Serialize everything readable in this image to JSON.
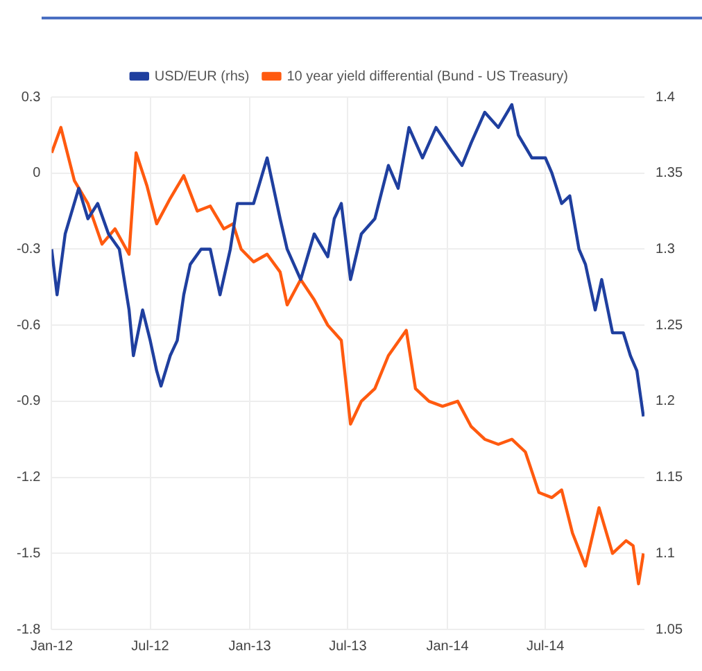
{
  "chart_data": {
    "type": "line",
    "xlim": [
      "2012-01-01",
      "2014-12-31"
    ],
    "xticks": [
      {
        "value": "2012-01-01",
        "label": "Jan-12"
      },
      {
        "value": "2012-07-01",
        "label": "Jul-12"
      },
      {
        "value": "2013-01-01",
        "label": "Jan-13"
      },
      {
        "value": "2013-07-01",
        "label": "Jul-13"
      },
      {
        "value": "2014-01-01",
        "label": "Jan-14"
      },
      {
        "value": "2014-07-01",
        "label": "Jul-14"
      }
    ],
    "ylim": [
      -1.8,
      0.3
    ],
    "yticks": [
      -1.8,
      -1.5,
      -1.2,
      -0.9,
      -0.6,
      -0.3,
      0.0,
      0.3
    ],
    "y2lim": [
      1.05,
      1.4
    ],
    "y2ticks": [
      1.05,
      1.1,
      1.15,
      1.2,
      1.25,
      1.3,
      1.35,
      1.4
    ],
    "grid": true,
    "legend": "top",
    "marker": "none",
    "line_style": "solid",
    "series": [
      {
        "name": "USD/EUR (rhs)",
        "color": "#1f3f9f",
        "axis": "y2",
        "x": [
          "2012-01-01",
          "2012-01-11",
          "2012-01-26",
          "2012-02-20",
          "2012-03-08",
          "2012-03-26",
          "2012-04-15",
          "2012-05-05",
          "2012-05-23",
          "2012-05-31",
          "2012-06-17",
          "2012-07-01",
          "2012-07-13",
          "2012-07-21",
          "2012-08-07",
          "2012-08-20",
          "2012-09-01",
          "2012-09-13",
          "2012-10-03",
          "2012-10-20",
          "2012-11-07",
          "2012-11-26",
          "2012-12-09",
          "2013-01-08",
          "2013-02-02",
          "2013-02-14",
          "2013-02-26",
          "2013-03-11",
          "2013-04-05",
          "2013-04-30",
          "2013-05-25",
          "2013-06-06",
          "2013-06-19",
          "2013-07-06",
          "2013-07-26",
          "2013-08-20",
          "2013-09-14",
          "2013-10-02",
          "2013-10-22",
          "2013-11-16",
          "2013-12-11",
          "2014-01-08",
          "2014-01-28",
          "2014-02-14",
          "2014-03-11",
          "2014-04-05",
          "2014-04-30",
          "2014-05-12",
          "2014-06-06",
          "2014-07-01",
          "2014-07-13",
          "2014-07-31",
          "2014-08-15",
          "2014-09-01",
          "2014-09-13",
          "2014-10-01",
          "2014-10-13",
          "2014-11-02",
          "2014-11-22",
          "2014-12-05",
          "2014-12-17",
          "2014-12-29"
        ],
        "values": [
          1.3,
          1.27,
          1.31,
          1.34,
          1.32,
          1.33,
          1.31,
          1.3,
          1.26,
          1.23,
          1.26,
          1.24,
          1.22,
          1.21,
          1.23,
          1.24,
          1.27,
          1.29,
          1.3,
          1.3,
          1.27,
          1.3,
          1.33,
          1.33,
          1.36,
          1.34,
          1.32,
          1.3,
          1.28,
          1.31,
          1.295,
          1.32,
          1.33,
          1.28,
          1.31,
          1.32,
          1.355,
          1.34,
          1.38,
          1.36,
          1.38,
          1.365,
          1.355,
          1.37,
          1.39,
          1.38,
          1.395,
          1.375,
          1.36,
          1.36,
          1.35,
          1.33,
          1.335,
          1.3,
          1.29,
          1.26,
          1.28,
          1.245,
          1.245,
          1.23,
          1.22,
          1.19
        ]
      },
      {
        "name": "10 year yield differential (Bund - US Treasury)",
        "color": "#ff5a0f",
        "x": [
          "2012-01-01",
          "2012-01-18",
          "2012-02-12",
          "2012-03-08",
          "2012-04-03",
          "2012-04-27",
          "2012-05-23",
          "2012-06-05",
          "2012-06-25",
          "2012-07-13",
          "2012-08-07",
          "2012-09-01",
          "2012-09-26",
          "2012-10-20",
          "2012-11-14",
          "2012-12-01",
          "2012-12-16",
          "2013-01-08",
          "2013-02-02",
          "2013-02-26",
          "2013-03-11",
          "2013-04-05",
          "2013-04-30",
          "2013-05-25",
          "2013-06-19",
          "2013-07-06",
          "2013-07-26",
          "2013-08-20",
          "2013-09-14",
          "2013-10-17",
          "2013-11-03",
          "2013-11-28",
          "2013-12-23",
          "2014-01-20",
          "2014-02-14",
          "2014-03-11",
          "2014-04-05",
          "2014-04-30",
          "2014-05-25",
          "2014-06-19",
          "2014-07-13",
          "2014-07-31",
          "2014-08-20",
          "2014-09-13",
          "2014-10-08",
          "2014-11-02",
          "2014-11-27",
          "2014-12-10",
          "2014-12-20",
          "2014-12-29"
        ],
        "values": [
          0.08,
          0.18,
          -0.03,
          -0.12,
          -0.28,
          -0.22,
          -0.32,
          0.08,
          -0.05,
          -0.2,
          -0.1,
          -0.01,
          -0.15,
          -0.13,
          -0.22,
          -0.2,
          -0.3,
          -0.35,
          -0.32,
          -0.39,
          -0.52,
          -0.42,
          -0.5,
          -0.6,
          -0.66,
          -0.99,
          -0.9,
          -0.85,
          -0.72,
          -0.62,
          -0.85,
          -0.9,
          -0.92,
          -0.9,
          -1.0,
          -1.05,
          -1.07,
          -1.05,
          -1.1,
          -1.26,
          -1.28,
          -1.25,
          -1.42,
          -1.55,
          -1.32,
          -1.5,
          -1.45,
          -1.47,
          -1.62,
          -1.5
        ]
      }
    ]
  }
}
